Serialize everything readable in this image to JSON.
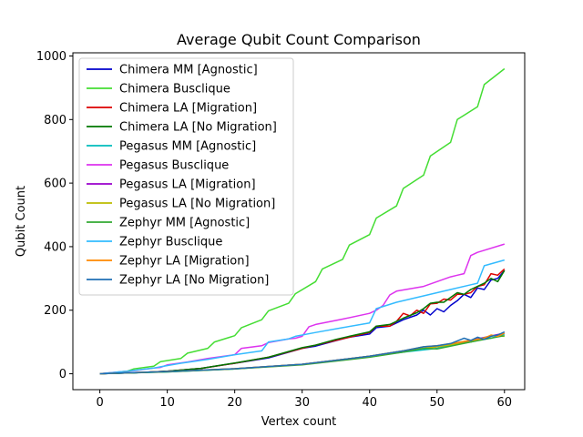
{
  "chart_data": {
    "type": "line",
    "title": "Average Qubit Count Comparison",
    "xlabel": "Vertex count",
    "ylabel": "Qubit Count",
    "xlim": [
      -4,
      63
    ],
    "ylim": [
      -50,
      1010
    ],
    "xticks": [
      0,
      10,
      20,
      30,
      40,
      50,
      60
    ],
    "yticks": [
      0,
      200,
      400,
      600,
      800,
      1000
    ],
    "grid": false,
    "legend_position": "top-left",
    "series": [
      {
        "name": "Chimera MM [Agnostic]",
        "color": "#0000cc",
        "x": [
          0,
          5,
          10,
          15,
          20,
          25,
          30,
          32,
          35,
          37,
          40,
          41,
          43,
          45,
          47,
          48,
          49,
          50,
          51,
          52,
          53,
          54,
          55,
          56,
          57,
          58,
          59,
          60
        ],
        "y": [
          0,
          3,
          8,
          17,
          33,
          50,
          80,
          87,
          104,
          115,
          125,
          145,
          150,
          170,
          185,
          200,
          185,
          205,
          195,
          215,
          230,
          250,
          240,
          270,
          265,
          295,
          300,
          325
        ]
      },
      {
        "name": "Chimera Busclique",
        "color": "#44dd33",
        "x": [
          0,
          4,
          5,
          8,
          9,
          12,
          13,
          15,
          16,
          17,
          20,
          21,
          24,
          25,
          28,
          29,
          32,
          33,
          36,
          37,
          40,
          41,
          44,
          45,
          48,
          49,
          52,
          53,
          56,
          57,
          60
        ],
        "y": [
          0,
          8,
          15,
          24,
          38,
          48,
          65,
          75,
          80,
          100,
          120,
          145,
          170,
          198,
          222,
          252,
          290,
          330,
          360,
          405,
          438,
          490,
          528,
          583,
          625,
          685,
          728,
          800,
          840,
          910,
          960
        ]
      },
      {
        "name": "Chimera LA [Migration]",
        "color": "#dd0000",
        "x": [
          0,
          5,
          10,
          15,
          20,
          25,
          30,
          32,
          35,
          37,
          40,
          41,
          43,
          44,
          45,
          46,
          47,
          48,
          49,
          50,
          51,
          52,
          53,
          54,
          55,
          56,
          57,
          58,
          59,
          60
        ],
        "y": [
          0,
          3,
          8,
          17,
          33,
          52,
          80,
          90,
          105,
          115,
          130,
          150,
          150,
          165,
          190,
          182,
          200,
          190,
          220,
          222,
          235,
          232,
          250,
          250,
          255,
          275,
          280,
          315,
          310,
          330
        ]
      },
      {
        "name": "Chimera LA [No Migration]",
        "color": "#007700",
        "x": [
          0,
          5,
          10,
          15,
          20,
          25,
          30,
          32,
          35,
          37,
          40,
          41,
          43,
          45,
          47,
          48,
          49,
          50,
          51,
          52,
          53,
          54,
          55,
          56,
          57,
          58,
          59,
          60
        ],
        "y": [
          0,
          3,
          8,
          17,
          34,
          52,
          82,
          90,
          108,
          118,
          132,
          150,
          155,
          175,
          192,
          205,
          222,
          225,
          225,
          240,
          255,
          250,
          265,
          275,
          285,
          300,
          290,
          325
        ]
      },
      {
        "name": "Pegasus MM [Agnostic]",
        "color": "#00bbbb",
        "x": [
          0,
          10,
          20,
          30,
          35,
          40,
          45,
          50,
          52,
          54,
          55,
          56,
          57,
          58,
          59,
          60
        ],
        "y": [
          0,
          6,
          15,
          30,
          42,
          55,
          68,
          80,
          90,
          98,
          100,
          105,
          110,
          112,
          118,
          125
        ]
      },
      {
        "name": "Pegasus  Busclique",
        "color": "#dd33ee",
        "x": [
          0,
          5,
          8,
          9,
          10,
          13,
          16,
          20,
          21,
          24,
          25,
          28,
          29,
          30,
          31,
          32,
          36,
          40,
          41,
          42,
          43,
          44,
          48,
          52,
          53,
          54,
          55,
          56,
          60
        ],
        "y": [
          0,
          10,
          18,
          20,
          28,
          37,
          48,
          60,
          80,
          88,
          98,
          110,
          112,
          118,
          148,
          155,
          172,
          190,
          200,
          215,
          248,
          260,
          275,
          305,
          310,
          315,
          372,
          382,
          408
        ]
      },
      {
        "name": "Pegasus LA [Migration]",
        "color": "#9900cc",
        "x": [
          0,
          10,
          20,
          30,
          40,
          45,
          50,
          55,
          60
        ],
        "y": [
          0,
          7,
          16,
          30,
          55,
          72,
          85,
          105,
          128
        ]
      },
      {
        "name": "Pegasus LA [No Migration]",
        "color": "#bbbb00",
        "x": [
          0,
          10,
          20,
          30,
          40,
          45,
          50,
          55,
          58,
          60
        ],
        "y": [
          0,
          7,
          16,
          30,
          55,
          72,
          85,
          100,
          120,
          118
        ]
      },
      {
        "name": "Zephyr MM [Agnostic]",
        "color": "#33aa33",
        "x": [
          0,
          10,
          20,
          30,
          40,
          45,
          48,
          50,
          55,
          60
        ],
        "y": [
          0,
          6,
          15,
          28,
          52,
          68,
          80,
          78,
          100,
          120
        ]
      },
      {
        "name": "Zephyr Busclique",
        "color": "#33bbff",
        "x": [
          0,
          4,
          8,
          9,
          12,
          16,
          20,
          24,
          25,
          28,
          29,
          32,
          36,
          40,
          41,
          44,
          48,
          52,
          55,
          56,
          57,
          60
        ],
        "y": [
          0,
          8,
          18,
          22,
          33,
          45,
          60,
          72,
          100,
          110,
          118,
          130,
          145,
          160,
          205,
          225,
          245,
          265,
          280,
          285,
          340,
          358
        ]
      },
      {
        "name": "Zephyr LA [Migration]",
        "color": "#ff8800",
        "x": [
          0,
          10,
          20,
          30,
          40,
          45,
          48,
          50,
          52,
          55,
          57,
          58,
          59,
          60
        ],
        "y": [
          0,
          7,
          16,
          30,
          55,
          72,
          85,
          88,
          95,
          105,
          112,
          122,
          118,
          128
        ]
      },
      {
        "name": "Zephyr LA [No Migration]",
        "color": "#1f6fb4",
        "x": [
          0,
          10,
          20,
          30,
          40,
          45,
          48,
          50,
          52,
          54,
          55,
          56,
          57,
          58,
          59,
          60
        ],
        "y": [
          0,
          7,
          16,
          30,
          55,
          72,
          85,
          88,
          95,
          112,
          105,
          115,
          108,
          118,
          122,
          132
        ]
      }
    ]
  }
}
